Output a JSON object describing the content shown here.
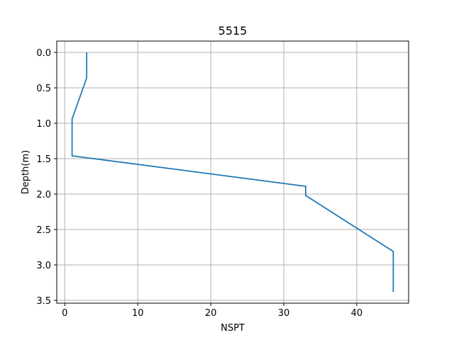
{
  "chart_data": {
    "type": "line",
    "title": "5515",
    "xlabel": "NSPT",
    "ylabel": "Depth(m)",
    "xlim": [
      -1.1,
      47.1
    ],
    "ylim": [
      3.54,
      -0.16
    ],
    "y_inverted": true,
    "x_ticks": [
      0,
      10,
      20,
      30,
      40
    ],
    "x_tick_labels": [
      "0",
      "10",
      "20",
      "30",
      "40"
    ],
    "y_ticks": [
      0.0,
      0.5,
      1.0,
      1.5,
      2.0,
      2.5,
      3.0,
      3.5
    ],
    "y_tick_labels": [
      "0.0",
      "0.5",
      "1.0",
      "1.5",
      "2.0",
      "2.5",
      "3.0",
      "3.5"
    ],
    "grid": true,
    "series": [
      {
        "color": "#1f77b4",
        "points": [
          {
            "x": 3,
            "y": 0.0
          },
          {
            "x": 3,
            "y": 0.36
          },
          {
            "x": 1,
            "y": 0.94
          },
          {
            "x": 1,
            "y": 1.46
          },
          {
            "x": 33,
            "y": 1.89
          },
          {
            "x": 33,
            "y": 2.02
          },
          {
            "x": 45,
            "y": 2.81
          },
          {
            "x": 45,
            "y": 3.38
          }
        ]
      }
    ]
  }
}
